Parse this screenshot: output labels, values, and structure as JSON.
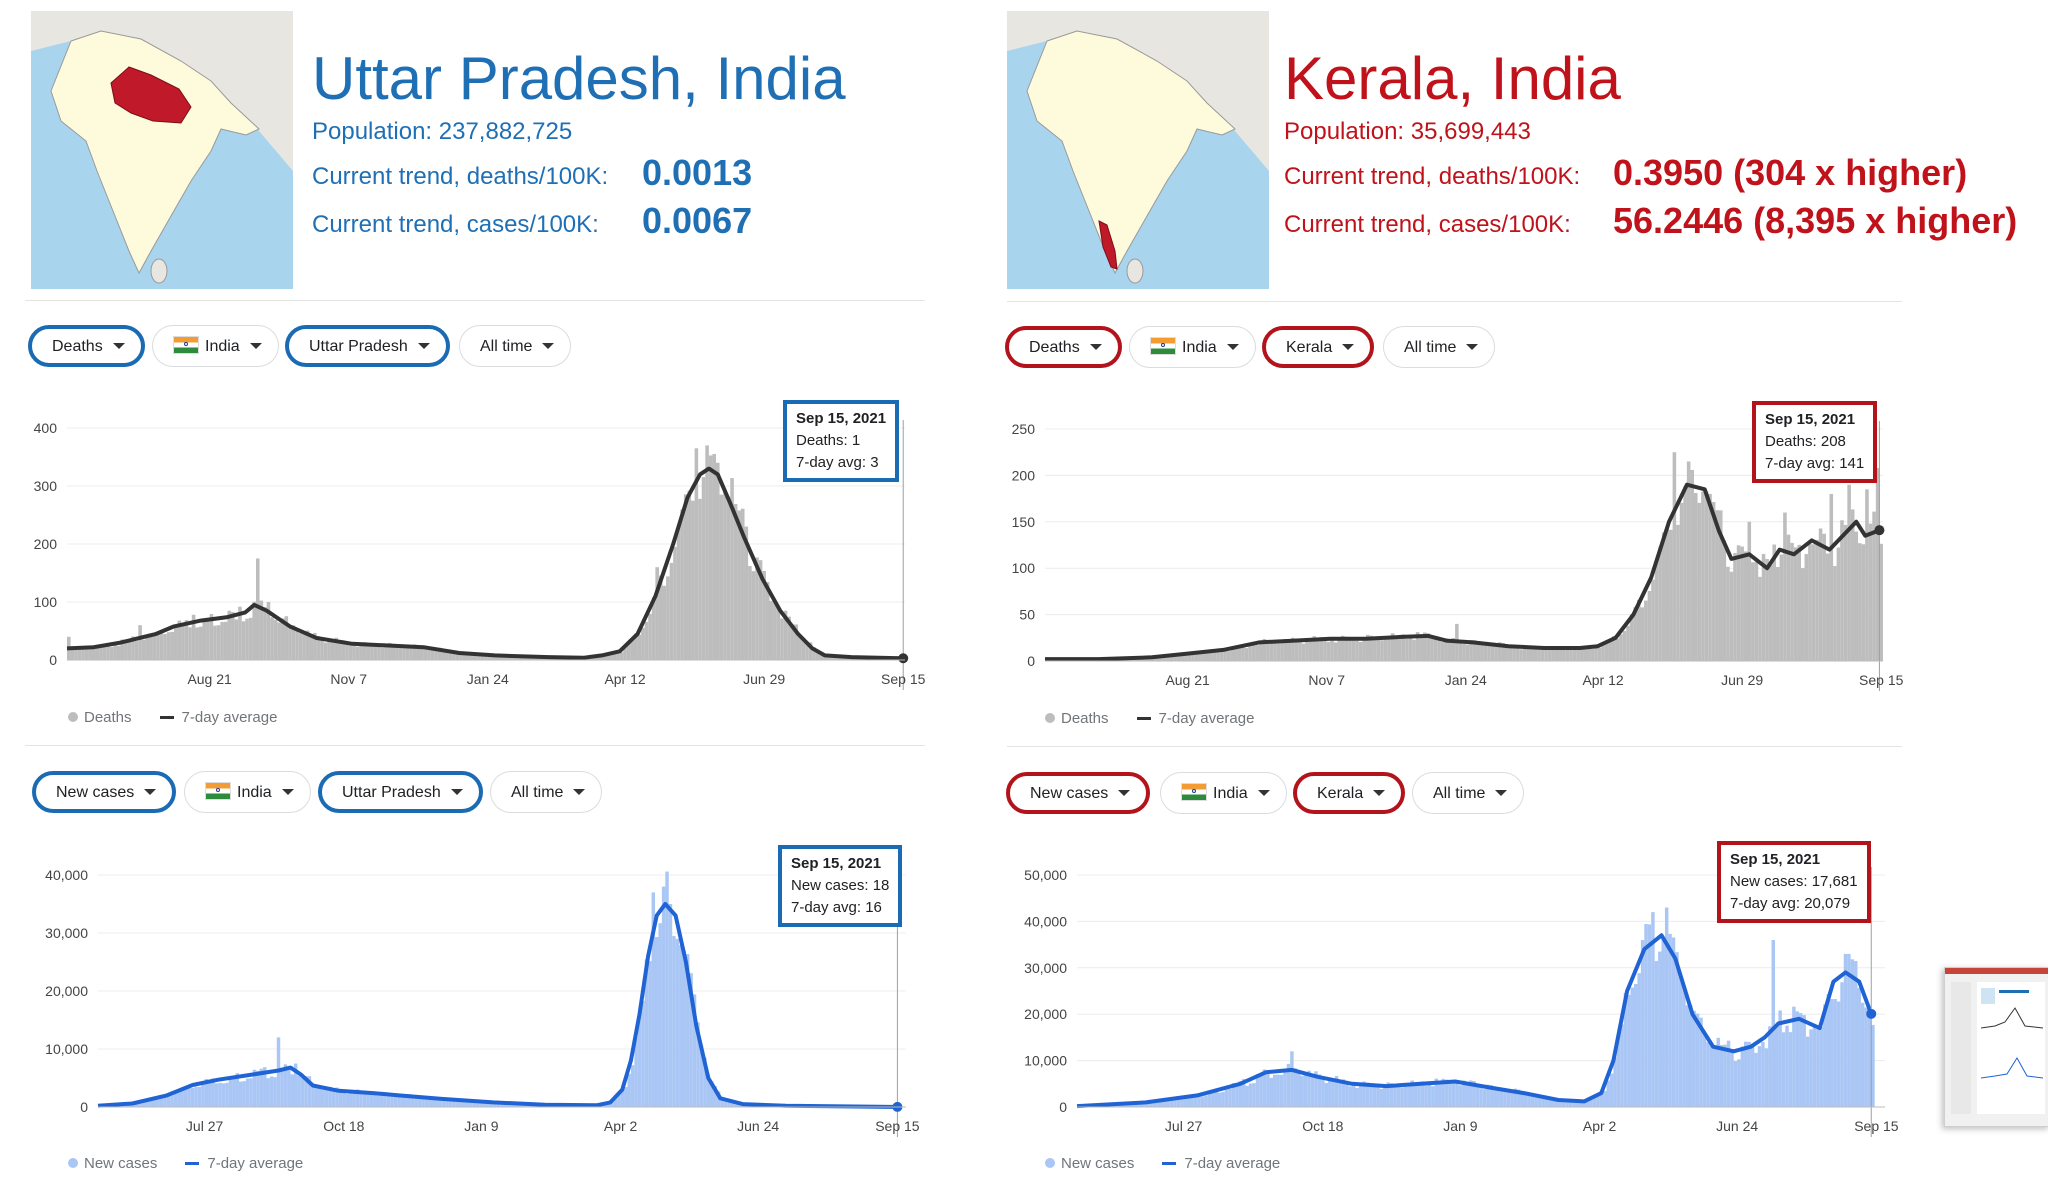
{
  "panels": [
    {
      "accent": "#1f6fb5",
      "chip_accent": "#1a6bb3",
      "highlight_region": "uttar-pradesh",
      "title": "Uttar Pradesh, India",
      "population": "Population: 237,882,725",
      "deaths_label": "Current trend, deaths/100K:",
      "deaths_value": "0.0013",
      "cases_label": "Current trend, cases/100K:",
      "cases_value": "0.0067",
      "deaths_filters": {
        "metric": "Deaths",
        "country": "India",
        "region": "Uttar Pradesh",
        "time": "All time"
      },
      "cases_filters": {
        "metric": "New cases",
        "country": "India",
        "region": "Uttar Pradesh",
        "time": "All time"
      },
      "deaths_tooltip": {
        "date": "Sep 15, 2021",
        "value": "Deaths: 1",
        "avg": "7-day avg: 3"
      },
      "cases_tooltip": {
        "date": "Sep 15, 2021",
        "value": "New cases: 18",
        "avg": "7-day avg: 16"
      },
      "deaths_legend": {
        "bars": "Deaths",
        "line": "7-day average"
      },
      "cases_legend": {
        "bars": "New cases",
        "line": "7-day average"
      }
    },
    {
      "accent": "#c0121a",
      "chip_accent": "#b3131b",
      "highlight_region": "kerala",
      "title": "Kerala, India",
      "population": "Population: 35,699,443",
      "deaths_label": "Current trend, deaths/100K:",
      "deaths_value": "0.3950 (304 x higher)",
      "cases_label": "Current trend, cases/100K:",
      "cases_value": "56.2446 (8,395 x higher)",
      "deaths_filters": {
        "metric": "Deaths",
        "country": "India",
        "region": "Kerala",
        "time": "All time"
      },
      "cases_filters": {
        "metric": "New cases",
        "country": "India",
        "region": "Kerala",
        "time": "All time"
      },
      "deaths_tooltip": {
        "date": "Sep 15, 2021",
        "value": "Deaths: 208",
        "avg": "7-day avg: 141"
      },
      "cases_tooltip": {
        "date": "Sep 15, 2021",
        "value": "New cases: 17,681",
        "avg": "7-day avg: 20,079"
      },
      "deaths_legend": {
        "bars": "Deaths",
        "line": "7-day average"
      },
      "cases_legend": {
        "bars": "New cases",
        "line": "7-day average"
      }
    }
  ],
  "chart_data": [
    {
      "id": "up-deaths",
      "type": "bar",
      "series": [
        {
          "name": "Deaths",
          "color": "#bdbdbd"
        },
        {
          "name": "7-day average",
          "color": "#333333"
        }
      ],
      "x_tick_labels": [
        "Aug 21",
        "Nov 7",
        "Jan 24",
        "Apr 12",
        "Jun 29",
        "Sep 15"
      ],
      "x_tick_positions": [
        80,
        158,
        236,
        313,
        391,
        469
      ],
      "x_range": [
        0,
        470
      ],
      "ylim": [
        0,
        400
      ],
      "y_ticks": [
        0,
        100,
        200,
        300,
        400
      ],
      "y_tick_labels": [
        "0",
        "100",
        "200",
        "300",
        "400"
      ],
      "avg_points": [
        [
          0,
          20
        ],
        [
          15,
          22
        ],
        [
          30,
          30
        ],
        [
          50,
          45
        ],
        [
          60,
          58
        ],
        [
          75,
          68
        ],
        [
          90,
          74
        ],
        [
          100,
          82
        ],
        [
          105,
          95
        ],
        [
          112,
          85
        ],
        [
          125,
          58
        ],
        [
          140,
          38
        ],
        [
          160,
          28
        ],
        [
          200,
          22
        ],
        [
          220,
          12
        ],
        [
          240,
          8
        ],
        [
          270,
          5
        ],
        [
          290,
          4
        ],
        [
          300,
          8
        ],
        [
          310,
          15
        ],
        [
          320,
          45
        ],
        [
          330,
          110
        ],
        [
          340,
          200
        ],
        [
          348,
          280
        ],
        [
          355,
          320
        ],
        [
          360,
          330
        ],
        [
          365,
          320
        ],
        [
          372,
          270
        ],
        [
          380,
          210
        ],
        [
          390,
          140
        ],
        [
          400,
          85
        ],
        [
          410,
          45
        ],
        [
          418,
          20
        ],
        [
          425,
          8
        ],
        [
          440,
          5
        ],
        [
          469,
          3
        ]
      ],
      "bar_spikes": [
        [
          1,
          40
        ],
        [
          40,
          60
        ],
        [
          70,
          78
        ],
        [
          95,
          70
        ],
        [
          107,
          175
        ],
        [
          113,
          100
        ],
        [
          330,
          160
        ],
        [
          352,
          365
        ],
        [
          358,
          370
        ],
        [
          365,
          340
        ],
        [
          380,
          230
        ]
      ]
    },
    {
      "id": "up-cases",
      "type": "bar",
      "series": [
        {
          "name": "New cases",
          "color": "#a9c6f5"
        },
        {
          "name": "7-day average",
          "color": "#1f63d5"
        }
      ],
      "x_tick_labels": [
        "Jul 27",
        "Oct 18",
        "Jan 9",
        "Apr 2",
        "Jun 24",
        "Sep 15"
      ],
      "x_tick_positions": [
        62,
        143,
        223,
        304,
        384,
        465
      ],
      "x_range": [
        0,
        470
      ],
      "ylim": [
        0,
        40000
      ],
      "y_ticks": [
        0,
        10000,
        20000,
        30000,
        40000
      ],
      "y_tick_labels": [
        "0",
        "10,000",
        "20,000",
        "30,000",
        "40,000"
      ],
      "avg_points": [
        [
          0,
          200
        ],
        [
          20,
          600
        ],
        [
          40,
          2000
        ],
        [
          55,
          3800
        ],
        [
          70,
          4700
        ],
        [
          90,
          5600
        ],
        [
          105,
          6300
        ],
        [
          112,
          6800
        ],
        [
          118,
          5600
        ],
        [
          125,
          3700
        ],
        [
          140,
          2800
        ],
        [
          160,
          2400
        ],
        [
          175,
          2000
        ],
        [
          200,
          1400
        ],
        [
          230,
          800
        ],
        [
          260,
          400
        ],
        [
          290,
          300
        ],
        [
          298,
          800
        ],
        [
          305,
          3000
        ],
        [
          310,
          8000
        ],
        [
          315,
          16000
        ],
        [
          320,
          26000
        ],
        [
          325,
          33000
        ],
        [
          330,
          35000
        ],
        [
          336,
          33000
        ],
        [
          342,
          25000
        ],
        [
          348,
          14000
        ],
        [
          355,
          5000
        ],
        [
          362,
          1500
        ],
        [
          375,
          500
        ],
        [
          400,
          200
        ],
        [
          465,
          16
        ]
      ],
      "bar_spikes": [
        [
          105,
          12000
        ],
        [
          115,
          7500
        ],
        [
          322,
          37000
        ],
        [
          328,
          38000
        ],
        [
          333,
          35000
        ]
      ]
    },
    {
      "id": "kl-deaths",
      "type": "bar",
      "series": [
        {
          "name": "Deaths",
          "color": "#bdbdbd"
        },
        {
          "name": "7-day average",
          "color": "#333333"
        }
      ],
      "x_tick_labels": [
        "Aug 21",
        "Nov 7",
        "Jan 24",
        "Apr 12",
        "Jun 29",
        "Sep 15"
      ],
      "x_tick_positions": [
        80,
        158,
        236,
        313,
        391,
        469
      ],
      "x_range": [
        0,
        470
      ],
      "ylim": [
        0,
        250
      ],
      "y_ticks": [
        0,
        50,
        100,
        150,
        200,
        250
      ],
      "y_tick_labels": [
        "0",
        "50",
        "100",
        "150",
        "200",
        "250"
      ],
      "avg_points": [
        [
          0,
          2
        ],
        [
          30,
          2
        ],
        [
          60,
          4
        ],
        [
          80,
          8
        ],
        [
          100,
          12
        ],
        [
          120,
          20
        ],
        [
          140,
          22
        ],
        [
          160,
          24
        ],
        [
          180,
          24
        ],
        [
          200,
          26
        ],
        [
          215,
          27
        ],
        [
          225,
          22
        ],
        [
          240,
          20
        ],
        [
          260,
          16
        ],
        [
          280,
          14
        ],
        [
          300,
          14
        ],
        [
          310,
          16
        ],
        [
          320,
          25
        ],
        [
          330,
          50
        ],
        [
          340,
          90
        ],
        [
          350,
          150
        ],
        [
          360,
          190
        ],
        [
          370,
          185
        ],
        [
          378,
          140
        ],
        [
          385,
          110
        ],
        [
          395,
          115
        ],
        [
          405,
          100
        ],
        [
          412,
          120
        ],
        [
          420,
          115
        ],
        [
          430,
          130
        ],
        [
          440,
          120
        ],
        [
          450,
          140
        ],
        [
          455,
          150
        ],
        [
          460,
          135
        ],
        [
          468,
          141
        ]
      ],
      "bar_spikes": [
        [
          230,
          40
        ],
        [
          352,
          225
        ],
        [
          360,
          215
        ],
        [
          372,
          180
        ],
        [
          395,
          150
        ],
        [
          415,
          160
        ],
        [
          440,
          180
        ],
        [
          450,
          190
        ],
        [
          460,
          185
        ],
        [
          467,
          208
        ]
      ]
    },
    {
      "id": "kl-cases",
      "type": "bar",
      "series": [
        {
          "name": "New cases",
          "color": "#a9c6f5"
        },
        {
          "name": "7-day average",
          "color": "#1f63d5"
        }
      ],
      "x_tick_labels": [
        "Jul 27",
        "Oct 18",
        "Jan 9",
        "Apr 2",
        "Jun 24",
        "Sep 15"
      ],
      "x_tick_positions": [
        62,
        143,
        223,
        304,
        384,
        465
      ],
      "x_range": [
        0,
        470
      ],
      "ylim": [
        0,
        50000
      ],
      "y_ticks": [
        0,
        10000,
        20000,
        30000,
        40000,
        50000
      ],
      "y_tick_labels": [
        "0",
        "10,000",
        "20,000",
        "30,000",
        "40,000",
        "50,000"
      ],
      "avg_points": [
        [
          0,
          200
        ],
        [
          40,
          1000
        ],
        [
          70,
          2500
        ],
        [
          95,
          5000
        ],
        [
          110,
          7500
        ],
        [
          125,
          8000
        ],
        [
          140,
          6500
        ],
        [
          160,
          5000
        ],
        [
          180,
          4500
        ],
        [
          200,
          5000
        ],
        [
          220,
          5500
        ],
        [
          240,
          4200
        ],
        [
          260,
          3000
        ],
        [
          280,
          1500
        ],
        [
          295,
          1200
        ],
        [
          305,
          3000
        ],
        [
          312,
          10000
        ],
        [
          320,
          25000
        ],
        [
          330,
          34000
        ],
        [
          340,
          37000
        ],
        [
          348,
          32000
        ],
        [
          358,
          20000
        ],
        [
          370,
          13000
        ],
        [
          382,
          12000
        ],
        [
          392,
          13000
        ],
        [
          400,
          15000
        ],
        [
          408,
          18000
        ],
        [
          420,
          19000
        ],
        [
          432,
          17000
        ],
        [
          440,
          27000
        ],
        [
          447,
          29000
        ],
        [
          455,
          27000
        ],
        [
          462,
          20079
        ]
      ],
      "bar_spikes": [
        [
          125,
          12000
        ],
        [
          335,
          42000
        ],
        [
          342,
          43000
        ],
        [
          405,
          36000
        ],
        [
          448,
          33000
        ],
        [
          462,
          17681
        ]
      ]
    }
  ]
}
